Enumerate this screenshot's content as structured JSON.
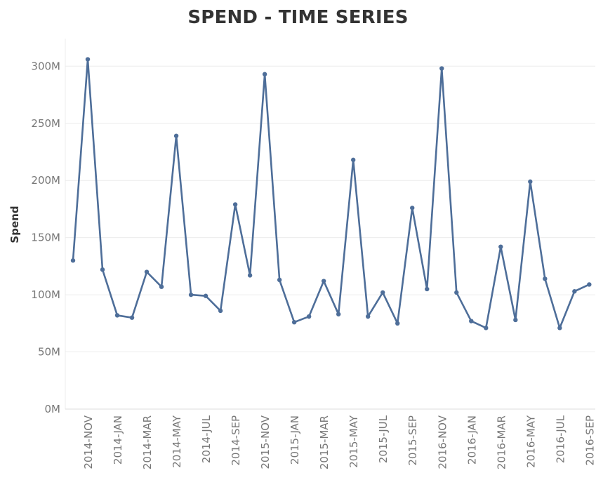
{
  "chart_data": {
    "type": "line",
    "title": "SPEND - TIME SERIES",
    "xlabel": "",
    "ylabel": "Spend",
    "ylim": [
      0,
      320000000
    ],
    "y_ticks": [
      {
        "value": 0,
        "label": "0M"
      },
      {
        "value": 50000000,
        "label": "50M"
      },
      {
        "value": 100000000,
        "label": "100M"
      },
      {
        "value": 150000000,
        "label": "150M"
      },
      {
        "value": 200000000,
        "label": "200M"
      },
      {
        "value": 250000000,
        "label": "250M"
      },
      {
        "value": 300000000,
        "label": "300M"
      }
    ],
    "x_tick_labels": [
      {
        "index": 1,
        "label": "2014-NOV"
      },
      {
        "index": 3,
        "label": "2014-JAN"
      },
      {
        "index": 5,
        "label": "2014-MAR"
      },
      {
        "index": 7,
        "label": "2014-MAY"
      },
      {
        "index": 9,
        "label": "2014-JUL"
      },
      {
        "index": 11,
        "label": "2014-SEP"
      },
      {
        "index": 13,
        "label": "2015-NOV"
      },
      {
        "index": 15,
        "label": "2015-JAN"
      },
      {
        "index": 17,
        "label": "2015-MAR"
      },
      {
        "index": 19,
        "label": "2015-MAY"
      },
      {
        "index": 21,
        "label": "2015-JUL"
      },
      {
        "index": 23,
        "label": "2015-SEP"
      },
      {
        "index": 25,
        "label": "2016-NOV"
      },
      {
        "index": 27,
        "label": "2016-JAN"
      },
      {
        "index": 29,
        "label": "2016-MAR"
      },
      {
        "index": 31,
        "label": "2016-MAY"
      },
      {
        "index": 33,
        "label": "2016-JUL"
      },
      {
        "index": 35,
        "label": "2016-SEP"
      }
    ],
    "series": [
      {
        "values": [
          130000000,
          306000000,
          122000000,
          82000000,
          80000000,
          120000000,
          107000000,
          239000000,
          100000000,
          99000000,
          86000000,
          179000000,
          117000000,
          293000000,
          113000000,
          76000000,
          81000000,
          112000000,
          83000000,
          218000000,
          81000000,
          102000000,
          75000000,
          176000000,
          105000000,
          298000000,
          102000000,
          77000000,
          71000000,
          142000000,
          78000000,
          199000000,
          114000000,
          71000000,
          103000000,
          109000000
        ]
      }
    ],
    "grid": true,
    "colors": {
      "line": "#4e6e99",
      "grid": "#ececec",
      "axis": "#dddddd"
    }
  }
}
